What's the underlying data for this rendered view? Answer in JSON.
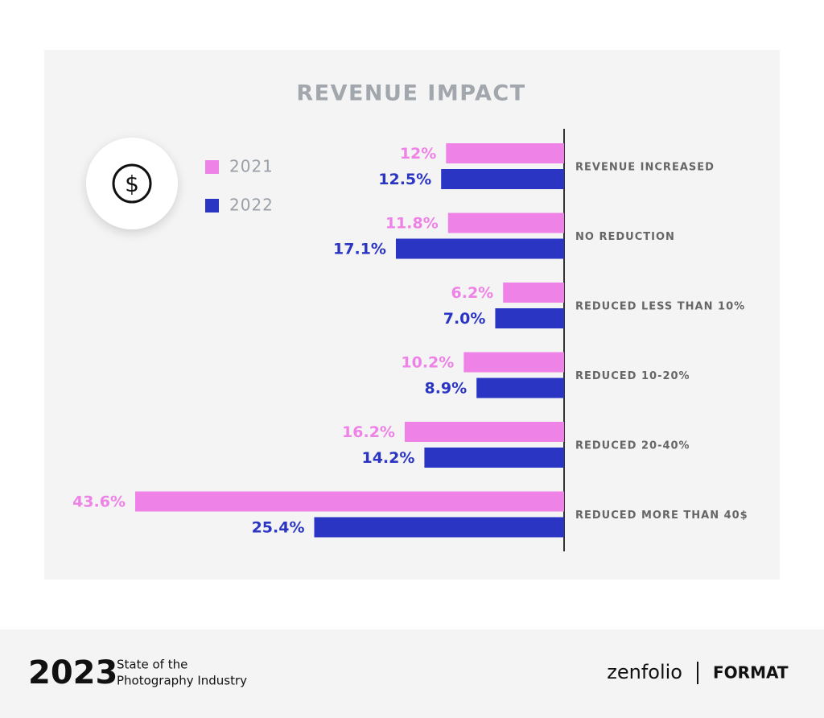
{
  "chart_data": {
    "type": "hbar",
    "title": "REVENUE IMPACT",
    "categories": [
      "REVENUE INCREASED",
      "NO REDUCTION",
      "REDUCED LESS THAN 10%",
      "REDUCED 10-20%",
      "REDUCED 20-40%",
      "REDUCED MORE THAN 40$"
    ],
    "series": [
      {
        "name": "2021",
        "color": "#ee82e6",
        "values": [
          12,
          11.8,
          6.2,
          10.2,
          16.2,
          43.6
        ],
        "value_labels": [
          "12%",
          "11.8%",
          "6.2%",
          "10.2%",
          "16.2%",
          "43.6%"
        ]
      },
      {
        "name": "2022",
        "color": "#2b35c4",
        "values": [
          12.5,
          17.1,
          7.0,
          8.9,
          14.2,
          25.4
        ],
        "value_labels": [
          "12.5%",
          "17.1%",
          "7.0%",
          "8.9%",
          "14.2%",
          "25.4%"
        ]
      }
    ]
  },
  "footer": {
    "year": "2023",
    "subtitle_line1": "State of the",
    "subtitle_line2": "Photography Industry",
    "brand1": "zenfolio",
    "brand2": "FORMAT"
  }
}
